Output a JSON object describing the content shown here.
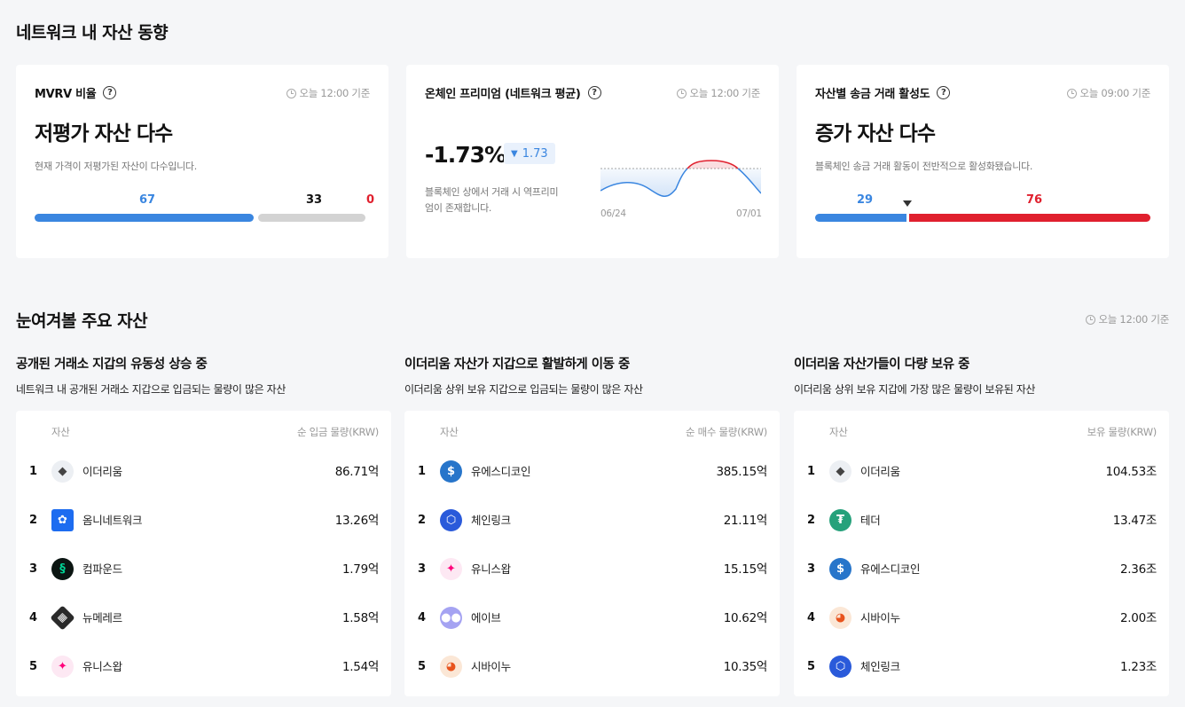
{
  "section1": {
    "title": "네트워크 내 자산 동향",
    "cards": [
      {
        "title": "MVRV 비율",
        "time": "오늘 12:00 기준",
        "headline": "저평가 자산 다수",
        "description": "현재 가격이 저평가된 자산이 다수입니다.",
        "values": [
          "67",
          "33",
          "0"
        ]
      },
      {
        "title": "온체인 프리미엄 (네트워크 평균)",
        "time": "오늘 12:00 기준",
        "value": "-1.73%",
        "change": "1.73",
        "description_line1": "블록체인 상에서 거래 시 역프리미",
        "description_line2": "엄이 존재합니다.",
        "x_start": "06/24",
        "x_end": "07/01"
      },
      {
        "title": "자산별 송금 거래 활성도",
        "time": "오늘 09:00 기준",
        "headline": "증가 자산 다수",
        "description": "블록체인 송금 거래 활동이 전반적으로 활성화됐습니다.",
        "values": [
          "29",
          "76"
        ]
      }
    ]
  },
  "section2": {
    "title": "눈여겨볼 주요 자산",
    "time": "오늘 12:00 기준",
    "lists": [
      {
        "title": "공개된 거래소 지갑의 유동성 상승 중",
        "description": "네트워크 내 공개된 거래소 지갑으로 입금되는 물량이 많은 자산",
        "col_asset": "자산",
        "col_value": "순 입금 물량(KRW)",
        "rows": [
          {
            "rank": "1",
            "name": "이더리움",
            "value": "86.71억",
            "icon": "ethereum-icon"
          },
          {
            "rank": "2",
            "name": "옴니네트워크",
            "value": "13.26억",
            "icon": "omni-network-icon"
          },
          {
            "rank": "3",
            "name": "컴파운드",
            "value": "1.79억",
            "icon": "compound-icon"
          },
          {
            "rank": "4",
            "name": "뉴메레르",
            "value": "1.58억",
            "icon": "numeraire-icon"
          },
          {
            "rank": "5",
            "name": "유니스왑",
            "value": "1.54억",
            "icon": "uniswap-icon"
          }
        ]
      },
      {
        "title": "이더리움 자산가 지갑으로 활발하게 이동 중",
        "description": "이더리움 상위 보유 지갑으로 입금되는 물량이 많은 자산",
        "col_asset": "자산",
        "col_value": "순 매수 물량(KRW)",
        "rows": [
          {
            "rank": "1",
            "name": "유에스디코인",
            "value": "385.15억",
            "icon": "usdc-icon"
          },
          {
            "rank": "2",
            "name": "체인링크",
            "value": "21.11억",
            "icon": "chainlink-icon"
          },
          {
            "rank": "3",
            "name": "유니스왑",
            "value": "15.15억",
            "icon": "uniswap-icon"
          },
          {
            "rank": "4",
            "name": "에이브",
            "value": "10.62억",
            "icon": "aave-icon"
          },
          {
            "rank": "5",
            "name": "시바이누",
            "value": "10.35억",
            "icon": "shiba-inu-icon"
          }
        ]
      },
      {
        "title": "이더리움 자산가들이 다량 보유 중",
        "description": "이더리움 상위 보유 지갑에 가장 많은 물량이 보유된 자산",
        "col_asset": "자산",
        "col_value": "보유 물량(KRW)",
        "rows": [
          {
            "rank": "1",
            "name": "이더리움",
            "value": "104.53조",
            "icon": "ethereum-icon"
          },
          {
            "rank": "2",
            "name": "테더",
            "value": "13.47조",
            "icon": "tether-icon"
          },
          {
            "rank": "3",
            "name": "유에스디코인",
            "value": "2.36조",
            "icon": "usdc-icon"
          },
          {
            "rank": "4",
            "name": "시바이누",
            "value": "2.00조",
            "icon": "shiba-inu-icon"
          },
          {
            "rank": "5",
            "name": "체인링크",
            "value": "1.23조",
            "icon": "chainlink-icon"
          }
        ]
      }
    ]
  },
  "colors": {
    "blue": "#3a86e0",
    "red": "#e0202e",
    "gray": "#d3d3d3"
  }
}
